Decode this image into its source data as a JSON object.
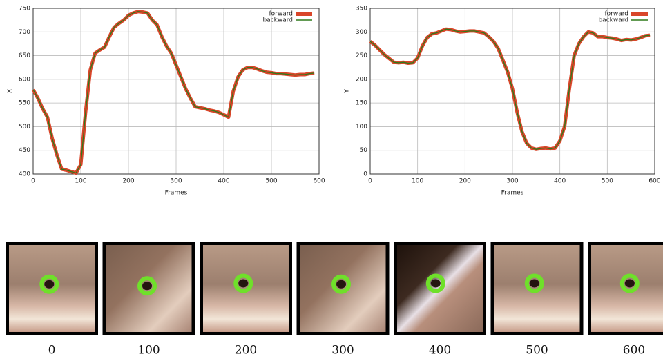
{
  "chart_data": [
    {
      "type": "line",
      "ylabel": "X",
      "xlabel": "Frames",
      "grid": true,
      "legend": "upper right",
      "x": [
        0,
        10,
        20,
        30,
        40,
        50,
        60,
        70,
        80,
        90,
        100,
        110,
        120,
        130,
        140,
        150,
        160,
        170,
        180,
        190,
        200,
        210,
        220,
        230,
        240,
        250,
        260,
        270,
        280,
        290,
        300,
        310,
        320,
        330,
        340,
        350,
        360,
        370,
        380,
        390,
        400,
        410,
        420,
        430,
        440,
        450,
        460,
        470,
        480,
        490,
        500,
        510,
        520,
        530,
        540,
        550,
        560,
        570,
        580,
        590
      ],
      "series": [
        {
          "name": "forward",
          "color": "#d9462a",
          "values": [
            578,
            560,
            538,
            520,
            475,
            440,
            410,
            408,
            405,
            402,
            420,
            530,
            620,
            655,
            662,
            668,
            690,
            710,
            718,
            725,
            735,
            740,
            743,
            742,
            740,
            725,
            715,
            690,
            670,
            655,
            630,
            605,
            580,
            560,
            542,
            540,
            538,
            535,
            533,
            530,
            525,
            520,
            575,
            605,
            620,
            625,
            625,
            622,
            618,
            615,
            614,
            612,
            612,
            611,
            610,
            609,
            610,
            610,
            612,
            613
          ]
        },
        {
          "name": "backward",
          "color": "#2f7a1a",
          "values": [
            578,
            560,
            538,
            520,
            475,
            440,
            410,
            408,
            405,
            402,
            420,
            530,
            620,
            655,
            662,
            668,
            690,
            710,
            718,
            725,
            735,
            740,
            743,
            742,
            740,
            725,
            715,
            690,
            670,
            655,
            630,
            605,
            580,
            560,
            542,
            540,
            538,
            535,
            533,
            530,
            525,
            520,
            575,
            605,
            620,
            625,
            625,
            622,
            618,
            615,
            614,
            612,
            612,
            611,
            610,
            609,
            610,
            610,
            612,
            613
          ]
        }
      ],
      "xlim": [
        0,
        600
      ],
      "xticks": [
        0,
        100,
        200,
        300,
        400,
        500,
        600
      ],
      "ylim": [
        400,
        750
      ],
      "yticks": [
        400,
        450,
        500,
        550,
        600,
        650,
        700,
        750
      ]
    },
    {
      "type": "line",
      "ylabel": "Y",
      "xlabel": "Frames",
      "grid": true,
      "legend": "upper right",
      "x": [
        0,
        10,
        20,
        30,
        40,
        50,
        60,
        70,
        80,
        90,
        100,
        110,
        120,
        130,
        140,
        150,
        160,
        170,
        180,
        190,
        200,
        210,
        220,
        230,
        240,
        250,
        260,
        270,
        280,
        290,
        300,
        310,
        320,
        330,
        340,
        350,
        360,
        370,
        380,
        390,
        400,
        410,
        420,
        430,
        440,
        450,
        460,
        470,
        480,
        490,
        500,
        510,
        520,
        530,
        540,
        550,
        560,
        570,
        580,
        590
      ],
      "series": [
        {
          "name": "forward",
          "color": "#d9462a",
          "values": [
            280,
            272,
            262,
            252,
            244,
            236,
            235,
            236,
            234,
            235,
            245,
            270,
            288,
            296,
            298,
            302,
            306,
            305,
            302,
            300,
            301,
            302,
            302,
            300,
            298,
            290,
            280,
            265,
            240,
            215,
            180,
            130,
            90,
            65,
            55,
            52,
            54,
            55,
            53,
            55,
            70,
            100,
            180,
            250,
            275,
            290,
            300,
            298,
            290,
            290,
            288,
            287,
            285,
            282,
            284,
            283,
            285,
            288,
            292,
            293
          ]
        },
        {
          "name": "backward",
          "color": "#2f7a1a",
          "values": [
            280,
            272,
            262,
            252,
            244,
            236,
            235,
            236,
            234,
            235,
            245,
            270,
            288,
            296,
            298,
            302,
            306,
            305,
            302,
            300,
            301,
            302,
            302,
            300,
            298,
            290,
            280,
            265,
            240,
            215,
            180,
            130,
            90,
            65,
            55,
            52,
            54,
            55,
            53,
            55,
            70,
            100,
            180,
            250,
            275,
            290,
            300,
            298,
            290,
            290,
            288,
            287,
            285,
            282,
            284,
            283,
            285,
            288,
            292,
            293
          ]
        }
      ],
      "xlim": [
        0,
        600
      ],
      "xticks": [
        0,
        100,
        200,
        300,
        400,
        500,
        600
      ],
      "ylim": [
        0,
        350
      ],
      "yticks": [
        0,
        50,
        100,
        150,
        200,
        250,
        300,
        350
      ]
    }
  ],
  "thumbnail_labels": [
    0,
    100,
    200,
    300,
    400,
    500,
    600
  ]
}
